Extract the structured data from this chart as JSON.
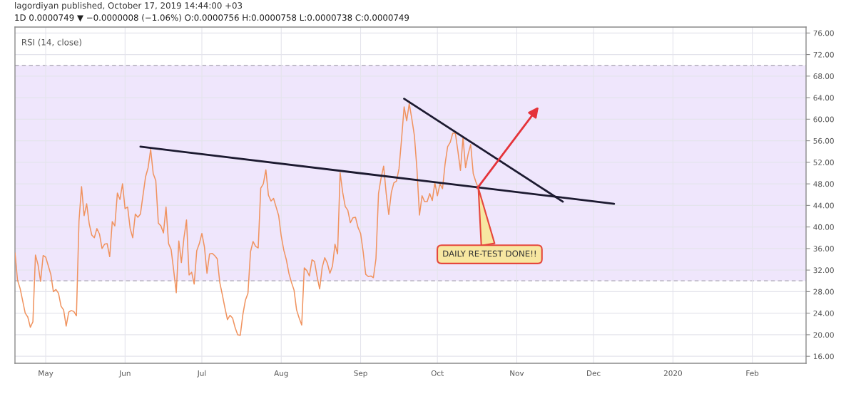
{
  "chart_data": {
    "type": "line",
    "title": "lagordiyan published, October 17, 2019 14:44:00 +03",
    "subtitle": "1D 0.0000749 ▼ −0.0000008 (−1.06%) O:0.0000756 H:0.0000758 L:0.0000738 C:0.0000749",
    "annotations": [
      "RSI (14, close)",
      {
        "text": "DAILY RE-TEST DONE!!",
        "x": "2019-10-17",
        "y": 47.2
      }
    ],
    "xlim": [
      "2019-04-19",
      "2020-02-22"
    ],
    "xticks": [
      {
        "value": "2019-05-01",
        "label": "May"
      },
      {
        "value": "2019-06-01",
        "label": "Jun"
      },
      {
        "value": "2019-07-01",
        "label": "Jul"
      },
      {
        "value": "2019-08-01",
        "label": "Aug"
      },
      {
        "value": "2019-09-01",
        "label": "Sep"
      },
      {
        "value": "2019-10-01",
        "label": "Oct"
      },
      {
        "value": "2019-11-01",
        "label": "Nov"
      },
      {
        "value": "2019-12-01",
        "label": "Dec"
      },
      {
        "value": "2020-01-01",
        "label": "2020"
      },
      {
        "value": "2020-02-01",
        "label": "Feb"
      }
    ],
    "ylim": [
      14.7,
      77.1
    ],
    "yticks": [
      {
        "value": 16,
        "label": "16.00"
      },
      {
        "value": 20,
        "label": "20.00"
      },
      {
        "value": 24,
        "label": "24.00"
      },
      {
        "value": 28,
        "label": "28.00"
      },
      {
        "value": 32,
        "label": "32.00"
      },
      {
        "value": 36,
        "label": "36.00"
      },
      {
        "value": 40,
        "label": "40.00"
      },
      {
        "value": 44,
        "label": "44.00"
      },
      {
        "value": 48,
        "label": "48.00"
      },
      {
        "value": 52,
        "label": "52.00"
      },
      {
        "value": 56,
        "label": "56.00"
      },
      {
        "value": 60,
        "label": "60.00"
      },
      {
        "value": 64,
        "label": "64.00"
      },
      {
        "value": 68,
        "label": "68.00"
      },
      {
        "value": 72,
        "label": "72.00"
      },
      {
        "value": 76,
        "label": "76.00"
      }
    ],
    "grid": true,
    "bands": [
      {
        "axis": "y",
        "from": 30,
        "to": 70,
        "color": "#efe6fc"
      }
    ],
    "ref_lines": [
      {
        "axis": "y",
        "value": 70,
        "color": "#b4b0bc",
        "line_style": "dashed"
      },
      {
        "axis": "y",
        "value": 30,
        "color": "#b4b0bc",
        "line_style": "dashed"
      }
    ],
    "series": [
      {
        "color": "#f0935f",
        "x": [
          "2019-04-19",
          "2019-04-20",
          "2019-04-21",
          "2019-04-23",
          "2019-04-24",
          "2019-04-25",
          "2019-04-26",
          "2019-04-27",
          "2019-04-28",
          "2019-04-29",
          "2019-04-30",
          "2019-05-01",
          "2019-05-02",
          "2019-05-03",
          "2019-05-04",
          "2019-05-05",
          "2019-05-06",
          "2019-05-07",
          "2019-05-08",
          "2019-05-09",
          "2019-05-10",
          "2019-05-11",
          "2019-05-12",
          "2019-05-13",
          "2019-05-14",
          "2019-05-15",
          "2019-05-16",
          "2019-05-17",
          "2019-05-18",
          "2019-05-19",
          "2019-05-20",
          "2019-05-21",
          "2019-05-22",
          "2019-05-23",
          "2019-05-24",
          "2019-05-25",
          "2019-05-26",
          "2019-05-27",
          "2019-05-28",
          "2019-05-29",
          "2019-05-30",
          "2019-05-31",
          "2019-06-01",
          "2019-06-02",
          "2019-06-03",
          "2019-06-04",
          "2019-06-05",
          "2019-06-06",
          "2019-06-07",
          "2019-06-09",
          "2019-06-10",
          "2019-06-11",
          "2019-06-12",
          "2019-06-13",
          "2019-06-14",
          "2019-06-15",
          "2019-06-16",
          "2019-06-17",
          "2019-06-18",
          "2019-06-19",
          "2019-06-20",
          "2019-06-21",
          "2019-06-22",
          "2019-06-23",
          "2019-06-24",
          "2019-06-25",
          "2019-06-26",
          "2019-06-27",
          "2019-06-28",
          "2019-06-29",
          "2019-06-30",
          "2019-07-01",
          "2019-07-02",
          "2019-07-03",
          "2019-07-04",
          "2019-07-05",
          "2019-07-06",
          "2019-07-07",
          "2019-07-08",
          "2019-07-09",
          "2019-07-10",
          "2019-07-11",
          "2019-07-12",
          "2019-07-13",
          "2019-07-14",
          "2019-07-15",
          "2019-07-16",
          "2019-07-17",
          "2019-07-18",
          "2019-07-19",
          "2019-07-20",
          "2019-07-21",
          "2019-07-22",
          "2019-07-23",
          "2019-07-24",
          "2019-07-25",
          "2019-07-26",
          "2019-07-27",
          "2019-07-28",
          "2019-07-29",
          "2019-07-30",
          "2019-07-31",
          "2019-08-01",
          "2019-08-02",
          "2019-08-03",
          "2019-08-04",
          "2019-08-05",
          "2019-08-06",
          "2019-08-07",
          "2019-08-08",
          "2019-08-09",
          "2019-08-10",
          "2019-08-11",
          "2019-08-12",
          "2019-08-13",
          "2019-08-14",
          "2019-08-15",
          "2019-08-16",
          "2019-08-17",
          "2019-08-18",
          "2019-08-19",
          "2019-08-20",
          "2019-08-21",
          "2019-08-22",
          "2019-08-23",
          "2019-08-24",
          "2019-08-25",
          "2019-08-26",
          "2019-08-27",
          "2019-08-28",
          "2019-08-29",
          "2019-08-30",
          "2019-08-31",
          "2019-09-01",
          "2019-09-02",
          "2019-09-03",
          "2019-09-04",
          "2019-09-05",
          "2019-09-06",
          "2019-09-07",
          "2019-09-08",
          "2019-09-09",
          "2019-09-10",
          "2019-09-11",
          "2019-09-12",
          "2019-09-13",
          "2019-09-14",
          "2019-09-15",
          "2019-09-16",
          "2019-09-17",
          "2019-09-18",
          "2019-09-19",
          "2019-09-20",
          "2019-09-21",
          "2019-09-22",
          "2019-09-23",
          "2019-09-24",
          "2019-09-25",
          "2019-09-26",
          "2019-09-27",
          "2019-09-28",
          "2019-09-29",
          "2019-09-30",
          "2019-10-01",
          "2019-10-02",
          "2019-10-03",
          "2019-10-04",
          "2019-10-05",
          "2019-10-06",
          "2019-10-07",
          "2019-10-08",
          "2019-10-09",
          "2019-10-10",
          "2019-10-11",
          "2019-10-12",
          "2019-10-13",
          "2019-10-14",
          "2019-10-15",
          "2019-10-16",
          "2019-10-17"
        ],
        "values": [
          35.2,
          30.1,
          28.6,
          24.0,
          23.3,
          21.4,
          22.4,
          34.8,
          33.0,
          29.9,
          34.7,
          34.4,
          32.8,
          31.2,
          28.0,
          28.4,
          27.7,
          25.3,
          24.6,
          21.6,
          24.2,
          24.5,
          24.3,
          23.5,
          41.1,
          47.5,
          42.1,
          44.3,
          40.6,
          38.5,
          38.0,
          39.7,
          38.7,
          36.0,
          36.8,
          36.9,
          34.5,
          41.0,
          40.2,
          46.3,
          45.1,
          48.0,
          43.4,
          43.7,
          39.7,
          38.0,
          42.4,
          41.8,
          42.4,
          49.3,
          51.0,
          54.4,
          49.9,
          48.6,
          40.7,
          40.2,
          38.9,
          43.7,
          36.9,
          35.8,
          31.9,
          27.8,
          37.4,
          33.4,
          38.0,
          41.3,
          31.1,
          31.6,
          29.4,
          35.6,
          36.9,
          38.8,
          36.3,
          31.4,
          35.0,
          35.1,
          34.7,
          34.1,
          29.7,
          27.4,
          25.0,
          22.8,
          23.6,
          23.1,
          21.3,
          20.0,
          19.9,
          23.7,
          26.4,
          27.7,
          35.4,
          37.3,
          36.4,
          36.1,
          47.2,
          48.0,
          50.6,
          45.9,
          44.8,
          45.3,
          43.7,
          42.1,
          38.3,
          35.7,
          33.9,
          31.4,
          29.7,
          28.3,
          24.6,
          23.1,
          21.8,
          32.4,
          31.9,
          30.9,
          33.9,
          33.6,
          30.8,
          28.5,
          32.5,
          34.3,
          33.3,
          31.4,
          32.7,
          36.8,
          35.0,
          50.1,
          46.4,
          43.8,
          43.1,
          40.8,
          41.7,
          41.8,
          39.9,
          38.8,
          35.4,
          31.2,
          30.8,
          30.9,
          30.6,
          34.1,
          46.2,
          49.1,
          51.3,
          46.2,
          42.3,
          46.4,
          48.2,
          48.5,
          50.8,
          56.3,
          62.3,
          59.7,
          62.9,
          60.1,
          57.0,
          50.8,
          42.2,
          45.8,
          44.7,
          44.7,
          46.2,
          44.9,
          48.2,
          45.8,
          48.0,
          47.1,
          51.7,
          54.9,
          55.7,
          57.4,
          57.4,
          54.1,
          50.5,
          56.6,
          51.0,
          53.5,
          55.3,
          49.9,
          48.4,
          47.2
        ]
      },
      {
        "color": "#1c1a30",
        "x": [
          "2019-06-07",
          "2019-12-09"
        ],
        "values": [
          54.9,
          44.3
        ]
      },
      {
        "color": "#1c1a30",
        "x": [
          "2019-09-18",
          "2019-11-19"
        ],
        "values": [
          63.8,
          44.7
        ]
      }
    ]
  }
}
